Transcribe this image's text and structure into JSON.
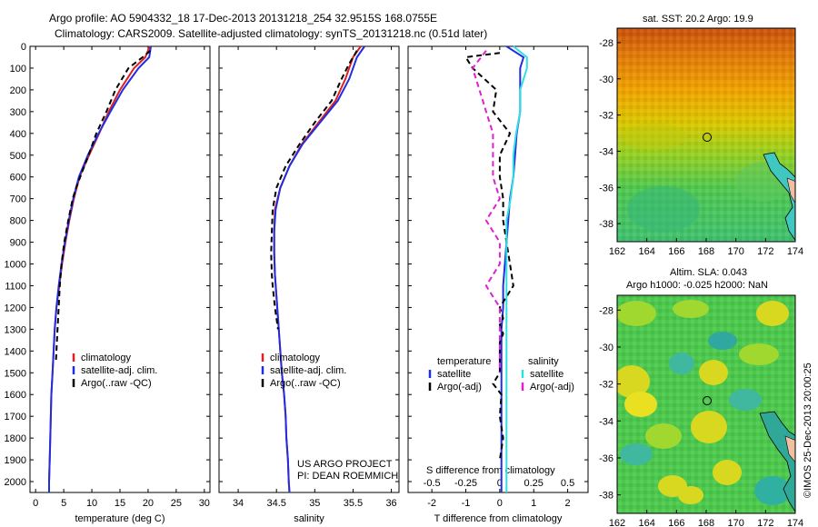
{
  "header": {
    "line1": "Argo profile: AO 5904332_18 17-Dec-2013 20131218_254 32.9515S 168.0755E",
    "line2": "Climatology: CARS2009. Satellite-adjusted climatology: synTS_20131218.nc (0.51d later)"
  },
  "colors": {
    "climatology": "#e02020",
    "satellite": "#1f2ee0",
    "argo": "#000000",
    "salinity_sat": "#30e0e0",
    "salinity_argo": "#e020d0"
  },
  "chart_data": [
    {
      "type": "line",
      "id": "temperature",
      "xlabel": "temperature (deg C)",
      "ylim": [
        2050,
        0
      ],
      "xlim": [
        -1,
        31
      ],
      "xticks": [
        0,
        5,
        10,
        15,
        20,
        25,
        30
      ],
      "yticks": [
        0,
        100,
        200,
        300,
        400,
        500,
        600,
        700,
        800,
        900,
        1000,
        1100,
        1200,
        1300,
        1400,
        1500,
        1600,
        1700,
        1800,
        1900,
        2000
      ],
      "legend": [
        "climatology",
        "satellite-adj. clim.",
        "Argo(..raw -QC)"
      ],
      "series": [
        {
          "name": "climatology",
          "x": [
            20.3,
            19.5,
            17.5,
            15.0,
            13.0,
            11.3,
            9.5,
            7.8,
            6.8,
            6.0,
            5.3,
            4.7,
            4.2,
            3.7,
            3.4,
            3.2,
            3.0,
            2.8,
            2.7,
            2.6,
            2.5,
            2.4,
            2.4
          ],
          "y": [
            0,
            50,
            100,
            200,
            300,
            400,
            500,
            600,
            700,
            800,
            900,
            1000,
            1100,
            1200,
            1300,
            1400,
            1500,
            1600,
            1700,
            1800,
            1900,
            2000,
            2050
          ]
        },
        {
          "name": "satellite-adj. clim.",
          "x": [
            20.5,
            20.2,
            18.3,
            15.5,
            13.3,
            11.2,
            9.3,
            7.7,
            6.7,
            5.9,
            5.2,
            4.6,
            4.1,
            3.7,
            3.4,
            3.2,
            3.0,
            2.8,
            2.7,
            2.6,
            2.5,
            2.4,
            2.4
          ],
          "y": [
            0,
            50,
            100,
            200,
            300,
            400,
            500,
            600,
            700,
            800,
            900,
            1000,
            1100,
            1200,
            1300,
            1400,
            1500,
            1600,
            1700,
            1800,
            1900,
            2000,
            2050
          ]
        },
        {
          "name": "Argo(..raw -QC)",
          "x": [
            20.4,
            19.0,
            16.5,
            14.2,
            12.6,
            10.8,
            9.4,
            7.2,
            6.6,
            5.8,
            5.1,
            4.6,
            4.3,
            3.9,
            3.6
          ],
          "y": [
            20,
            50,
            100,
            200,
            300,
            400,
            500,
            650,
            700,
            800,
            900,
            1000,
            1100,
            1300,
            1450
          ]
        }
      ]
    },
    {
      "type": "line",
      "id": "salinity",
      "xlabel": "salinity",
      "ylim": [
        2050,
        0
      ],
      "xlim": [
        33.75,
        36.1
      ],
      "xticks": [
        34,
        34.5,
        35,
        35.5,
        36
      ],
      "legend": [
        "climatology",
        "satellite-adj. clim.",
        "Argo(..raw -QC)"
      ],
      "series": [
        {
          "name": "climatology",
          "x": [
            35.6,
            35.5,
            35.4,
            35.27,
            35.05,
            34.83,
            34.67,
            34.55,
            34.48,
            34.47,
            34.47,
            34.48,
            34.5,
            34.52,
            34.55,
            34.57,
            34.6,
            34.62,
            34.63,
            34.65,
            34.66,
            34.67
          ],
          "y": [
            0,
            50,
            150,
            250,
            350,
            450,
            550,
            650,
            750,
            850,
            950,
            1050,
            1150,
            1250,
            1400,
            1500,
            1600,
            1700,
            1800,
            1900,
            2000,
            2050
          ]
        },
        {
          "name": "satellite-adj. clim.",
          "x": [
            35.65,
            35.55,
            35.45,
            35.3,
            35.07,
            34.84,
            34.67,
            34.55,
            34.49,
            34.47,
            34.47,
            34.48,
            34.5,
            34.52,
            34.55,
            34.57,
            34.6,
            34.62,
            34.63,
            34.65,
            34.66,
            34.67
          ],
          "y": [
            0,
            50,
            150,
            250,
            350,
            450,
            550,
            650,
            750,
            850,
            950,
            1050,
            1150,
            1250,
            1400,
            1500,
            1600,
            1700,
            1800,
            1900,
            2000,
            2050
          ]
        },
        {
          "name": "Argo(..raw -QC)",
          "x": [
            35.55,
            35.45,
            35.35,
            35.22,
            35.0,
            34.8,
            34.62,
            34.5,
            34.45,
            34.44,
            34.43,
            34.44,
            34.45,
            34.48,
            34.52
          ],
          "y": [
            20,
            80,
            150,
            250,
            350,
            450,
            550,
            650,
            750,
            850,
            950,
            1050,
            1100,
            1200,
            1300
          ]
        }
      ]
    },
    {
      "type": "line",
      "id": "difference",
      "xlabel": "T difference from climatology",
      "xlabel2": "S difference from climatology",
      "ylim": [
        2050,
        0
      ],
      "xlim": [
        -2.7,
        2.6
      ],
      "xticks": [
        -2,
        -1,
        0,
        1,
        2
      ],
      "xticks2": [
        -0.5,
        -0.25,
        0,
        0.25,
        0.5
      ],
      "legend_titles": [
        "temperature",
        "salinity"
      ],
      "legend": [
        "satellite",
        "Argo(-adj)",
        "satellite",
        "Argo(-adj)"
      ],
      "series": [
        {
          "name": "temperature satellite",
          "x": [
            0.2,
            0.7,
            0.6,
            0.6,
            0.6,
            0.5,
            0.45,
            0.4,
            0.3,
            0.25,
            0.2,
            0.15,
            0.1,
            0.1,
            0.05,
            0.05,
            0.05,
            0.05,
            0.05,
            0.05,
            0.05,
            0.05
          ],
          "y": [
            0,
            50,
            100,
            200,
            300,
            400,
            500,
            600,
            700,
            800,
            900,
            1000,
            1100,
            1200,
            1300,
            1400,
            1500,
            1600,
            1700,
            1800,
            1900,
            2050
          ]
        },
        {
          "name": "temperature Argo(-adj)",
          "x": [
            0.0,
            -1.0,
            -0.8,
            -0.1,
            -0.2,
            0.3,
            0.0,
            0.0,
            0.1,
            0.1,
            0.2,
            0.3,
            0.4,
            0.0,
            0.1,
            0.0,
            0.1,
            0.0,
            0.0,
            0.0,
            -0.2,
            0.05,
            0.0,
            0.1,
            0.0
          ],
          "y": [
            30,
            50,
            100,
            200,
            300,
            400,
            500,
            600,
            700,
            800,
            900,
            1000,
            1100,
            1200,
            1250,
            1280,
            1320,
            1360,
            1400,
            1500,
            1550,
            1600,
            1700,
            1800,
            1900
          ]
        },
        {
          "name": "salinity satellite",
          "x": [
            0.1,
            0.2,
            0.2,
            0.15,
            0.15,
            0.12,
            0.1,
            0.1,
            0.08,
            0.05,
            0.05,
            0.05,
            0.05,
            0.05,
            0.05,
            0.05,
            0.05,
            0.05
          ],
          "y": [
            0,
            50,
            100,
            200,
            300,
            400,
            500,
            600,
            700,
            800,
            900,
            1000,
            1100,
            1200,
            1400,
            1600,
            1800,
            2050
          ]
        },
        {
          "name": "salinity Argo(-adj)",
          "x": [
            -0.1,
            -0.2,
            -0.15,
            -0.1,
            -0.05,
            -0.05,
            -0.05,
            0.0,
            -0.1,
            0.0,
            0.0,
            -0.1,
            0.0,
            0.0,
            0.0,
            0.0
          ],
          "y": [
            20,
            100,
            200,
            300,
            400,
            500,
            600,
            700,
            800,
            900,
            1000,
            1100,
            1200,
            1300,
            1400,
            1500
          ]
        }
      ]
    },
    {
      "type": "heatmap",
      "id": "sst_map",
      "title": "sat. SST: 20.2  Argo: 19.9",
      "xlim": [
        162,
        174
      ],
      "ylim": [
        -39,
        -27.2
      ],
      "xticks": [
        162,
        164,
        166,
        168,
        170,
        172,
        174
      ],
      "yticks": [
        -28,
        -30,
        -32,
        -34,
        -36,
        -38
      ],
      "marker": {
        "lon": 168.08,
        "lat": -32.95
      }
    },
    {
      "type": "heatmap",
      "id": "sla_map",
      "title": "Altim. SLA: 0.043",
      "subtitle": "Argo h1000: -0.025 h2000: NaN",
      "xlim": [
        162,
        174
      ],
      "ylim": [
        -39,
        -27.2
      ],
      "xticks": [
        162,
        164,
        166,
        168,
        170,
        172,
        174
      ],
      "yticks": [
        -28,
        -30,
        -32,
        -34,
        -36,
        -38
      ],
      "marker": {
        "lon": 168.08,
        "lat": -32.95
      }
    }
  ],
  "notes": {
    "project": "US ARGO PROJECT",
    "pi": "PI: DEAN ROEMMICH",
    "imos": "©IMOS 25-Dec-2013 20:00:25"
  }
}
